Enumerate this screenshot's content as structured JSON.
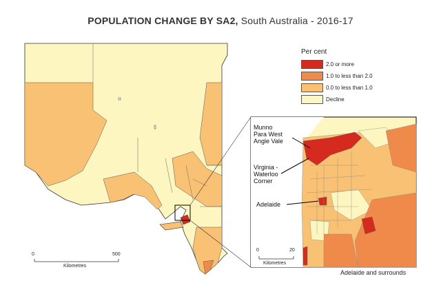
{
  "title": {
    "bold": "POPULATION CHANGE BY SA2,",
    "rest": " South Australia - 2016-17"
  },
  "legend": {
    "title": "Per cent",
    "items": [
      {
        "label": "2.0 or more",
        "color": "#d42b1e"
      },
      {
        "label": "1.0 to less than 2.0",
        "color": "#f08a4b"
      },
      {
        "label": "0.0 to less than 1.0",
        "color": "#f9c173"
      },
      {
        "label": "Decline",
        "color": "#fdf6c0"
      }
    ]
  },
  "inset": {
    "caption": "Adelaide and surrounds",
    "labels": {
      "munno": "Munno",
      "para_west": "Para West",
      "angle_vale": "Angle Vale",
      "virginia": "Virginia -",
      "waterloo": "Waterloo",
      "corner": "Corner",
      "adelaide": "Adelaide"
    },
    "scale": {
      "start": "0",
      "end": "20",
      "unit": "Kilometres"
    }
  },
  "main_scale": {
    "start": "0",
    "end": "500",
    "unit": "Kilometres"
  }
}
